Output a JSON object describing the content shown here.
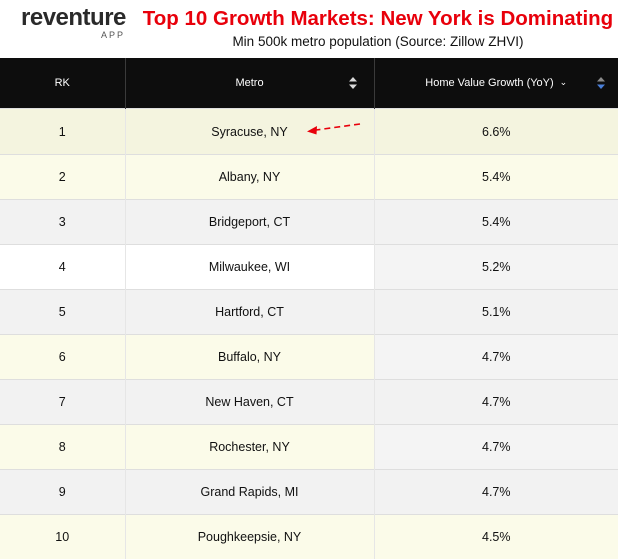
{
  "brand": {
    "name": "reventure",
    "sub": "APP"
  },
  "header": {
    "title": "Top 10 Growth Markets: New York is Dominating",
    "subtitle": "Min 500k metro population (Source: Zillow ZHVI)"
  },
  "colors": {
    "title": "#e8000b",
    "header_bg": "#0d0d0d",
    "row_yellow": "#fbfbe9",
    "row_gray": "#f2f2f2",
    "row_white": "#ffffff",
    "sort_active": "#4a7fd9",
    "annotation_arrow": "#e8000b"
  },
  "chart_data": {
    "type": "table",
    "columns": [
      "RK",
      "Metro",
      "Home Value Growth (YoY)"
    ],
    "rows": [
      {
        "rank": "1",
        "metro": "Syracuse, NY",
        "growth": "6.6%"
      },
      {
        "rank": "2",
        "metro": "Albany, NY",
        "growth": "5.4%"
      },
      {
        "rank": "3",
        "metro": "Bridgeport, CT",
        "growth": "5.4%"
      },
      {
        "rank": "4",
        "metro": "Milwaukee, WI",
        "growth": "5.2%"
      },
      {
        "rank": "5",
        "metro": "Hartford, CT",
        "growth": "5.1%"
      },
      {
        "rank": "6",
        "metro": "Buffalo, NY",
        "growth": "4.7%"
      },
      {
        "rank": "7",
        "metro": "New Haven, CT",
        "growth": "4.7%"
      },
      {
        "rank": "8",
        "metro": "Rochester, NY",
        "growth": "4.7%"
      },
      {
        "rank": "9",
        "metro": "Grand Rapids, MI",
        "growth": "4.7%"
      },
      {
        "rank": "10",
        "metro": "Poughkeepsie, NY",
        "growth": "4.5%"
      }
    ],
    "sorted_by": "Home Value Growth (YoY)",
    "sort_direction": "descending"
  }
}
